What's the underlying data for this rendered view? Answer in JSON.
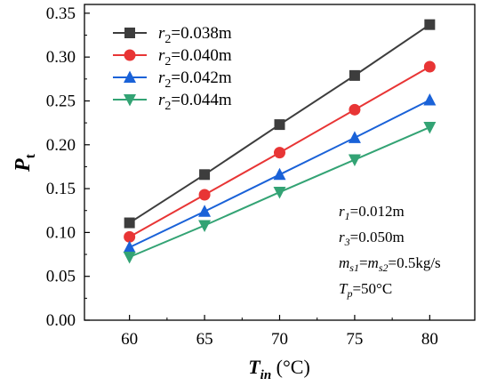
{
  "chart_data": {
    "type": "line",
    "x": [
      60,
      65,
      70,
      75,
      80
    ],
    "series": [
      {
        "name": "=0.038m",
        "values": [
          0.111,
          0.166,
          0.223,
          0.279,
          0.337
        ],
        "color": "#3d3d3d",
        "marker": "square"
      },
      {
        "name": "=0.040m",
        "values": [
          0.095,
          0.143,
          0.191,
          0.24,
          0.289
        ],
        "color": "#e83535",
        "marker": "circle"
      },
      {
        "name": "=0.042m",
        "values": [
          0.083,
          0.124,
          0.166,
          0.208,
          0.251
        ],
        "color": "#1a62d8",
        "marker": "triangle-up"
      },
      {
        "name": "=0.044m",
        "values": [
          0.072,
          0.108,
          0.146,
          0.183,
          0.22
        ],
        "color": "#33a374",
        "marker": "triangle-down"
      }
    ],
    "legend_var": {
      "base": "r",
      "sub": "2"
    },
    "xlabel": {
      "main": "T",
      "sub": "in",
      "rest": " (°C)"
    },
    "ylabel": {
      "main": "P",
      "sub": "t"
    },
    "xlim": [
      57,
      83
    ],
    "ylim": [
      0.0,
      0.36
    ],
    "xticks": [
      "60",
      "65",
      "70",
      "75",
      "80"
    ],
    "yticks": [
      "0.00",
      "0.05",
      "0.10",
      "0.15",
      "0.20",
      "0.25",
      "0.30",
      "0.35"
    ],
    "annotations": [
      {
        "var": "r",
        "sub": "1",
        "rest": "=0.012m"
      },
      {
        "var": "r",
        "sub": "3",
        "rest": "=0.050m"
      },
      {
        "var": "m",
        "sub": "s1",
        "mid": "=",
        "var2": "m",
        "sub2": "s2",
        "rest": "=0.5kg/s"
      },
      {
        "var": "T",
        "sub": "p",
        "rest": "=50°C"
      }
    ],
    "legend_position": "top-left",
    "grid": false
  }
}
